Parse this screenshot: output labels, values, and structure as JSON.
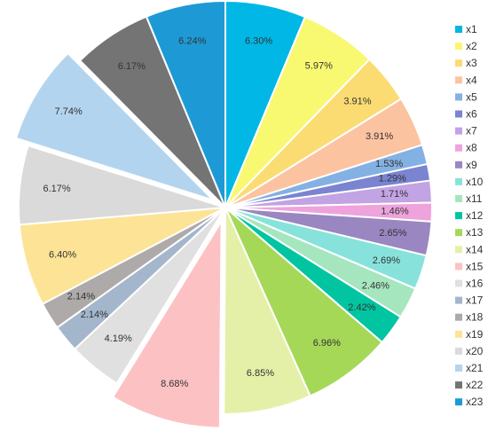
{
  "chart_data": {
    "type": "pie",
    "series": [
      {
        "name": "x1",
        "value": 6.3,
        "label": "6.30%",
        "color": "#00b7e5"
      },
      {
        "name": "x2",
        "value": 5.97,
        "label": "5.97%",
        "color": "#f9f871"
      },
      {
        "name": "x3",
        "value": 3.91,
        "label": "3.91%",
        "color": "#fbdc72"
      },
      {
        "name": "x4",
        "value": 3.91,
        "label": "3.91%",
        "color": "#fcc3a1"
      },
      {
        "name": "x5",
        "value": 1.53,
        "label": "1.53%",
        "color": "#84b1e3"
      },
      {
        "name": "x6",
        "value": 1.29,
        "label": "1.29%",
        "color": "#7a84d0"
      },
      {
        "name": "x7",
        "value": 1.71,
        "label": "1.71%",
        "color": "#c2a3e3"
      },
      {
        "name": "x8",
        "value": 1.46,
        "label": "1.46%",
        "color": "#eea3dc"
      },
      {
        "name": "x9",
        "value": 2.65,
        "label": "2.65%",
        "color": "#9a86c1"
      },
      {
        "name": "x10",
        "value": 2.69,
        "label": "2.69%",
        "color": "#88e2dc"
      },
      {
        "name": "x11",
        "value": 2.46,
        "label": "2.46%",
        "color": "#a6e6bf"
      },
      {
        "name": "x12",
        "value": 2.42,
        "label": "2.42%",
        "color": "#00c5a0"
      },
      {
        "name": "x13",
        "value": 6.96,
        "label": "6.96%",
        "color": "#a6d858"
      },
      {
        "name": "x14",
        "value": 6.85,
        "label": "6.85%",
        "color": "#e4f0a8"
      },
      {
        "name": "x15",
        "value": 8.68,
        "label": "8.68%",
        "color": "#fcc2c3"
      },
      {
        "name": "x16",
        "value": 4.19,
        "label": "4.19%",
        "color": "#e0e0e0"
      },
      {
        "name": "x17",
        "value": 2.14,
        "label": "2.14%",
        "color": "#a4b6cc"
      },
      {
        "name": "x18",
        "value": 2.14,
        "label": "2.14%",
        "color": "#aeaaaa"
      },
      {
        "name": "x19",
        "value": 6.4,
        "label": "6.40%",
        "color": "#fde395"
      },
      {
        "name": "x20",
        "value": 6.17,
        "label": "6.17%",
        "color": "#dadada"
      },
      {
        "name": "x21",
        "value": 7.74,
        "label": "7.74%",
        "color": "#b3d4ee"
      },
      {
        "name": "x22",
        "value": 6.17,
        "label": "6.17%",
        "color": "#747474"
      },
      {
        "name": "x23",
        "value": 6.24,
        "label": "6.24%",
        "color": "#1d9ad6"
      }
    ],
    "exploded": [
      "x15",
      "x21"
    ],
    "legend_position": "right",
    "start_angle_deg": 0,
    "direction": "clockwise"
  }
}
